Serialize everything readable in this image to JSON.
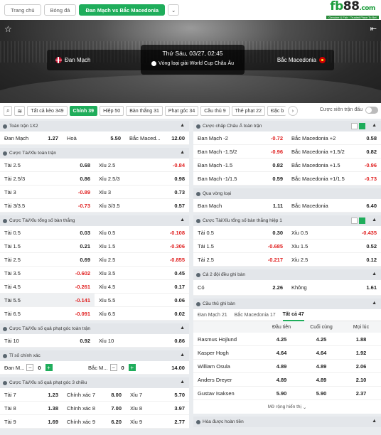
{
  "nav": {
    "home": "Trang chủ",
    "football": "Bóng đá",
    "match": "Đan Mạch vs Bắc Macedonia",
    "dropdown": "⌄"
  },
  "logo": {
    "text_green": "fb",
    "text_dark": "88",
    "suffix": ".com",
    "tagline": "Genuine & Fair · Trusted Place To Bet"
  },
  "match": {
    "home": "Đan Mạch",
    "away": "Bắc Macedonia",
    "date": "Thứ Sáu, 03/27, 02:45",
    "competition": "Vòng loại giải World Cup Châu Âu"
  },
  "tabs": [
    "Tất cả kèo 349",
    "Chính 39",
    "Hiệp 50",
    "Bàn thắng 31",
    "Phạt góc 34",
    "Cầu thủ 9",
    "Thẻ phạt 22",
    "Đặc b"
  ],
  "toggle_label": "Cược xiên trận đấu",
  "left": {
    "p1": {
      "title": "Toàn trận 1X2",
      "rows": [
        [
          "Đan Mạch",
          "1.27",
          "Hoà",
          "5.50",
          "Bắc Maced...",
          "12.00"
        ]
      ]
    },
    "p2": {
      "title": "Cược Tài/Xỉu toàn trận",
      "rows": [
        [
          "Tài 2.5",
          "0.68",
          "Xỉu 2.5",
          "-0.84"
        ],
        [
          "Tài 2.5/3",
          "0.86",
          "Xỉu 2.5/3",
          "0.98"
        ],
        [
          "Tài 3",
          "-0.89",
          "Xỉu 3",
          "0.73"
        ],
        [
          "Tài 3/3.5",
          "-0.73",
          "Xỉu 3/3.5",
          "0.57"
        ]
      ]
    },
    "p3": {
      "title": "Cược Tài/Xỉu tổng số bàn thắng",
      "rows": [
        [
          "Tài 0.5",
          "0.03",
          "Xỉu 0.5",
          "-0.108"
        ],
        [
          "Tài 1.5",
          "0.21",
          "Xỉu 1.5",
          "-0.306"
        ],
        [
          "Tài 2.5",
          "0.69",
          "Xỉu 2.5",
          "-0.855"
        ],
        [
          "Tài 3.5",
          "-0.602",
          "Xỉu 3.5",
          "0.45"
        ],
        [
          "Tài 4.5",
          "-0.261",
          "Xỉu 4.5",
          "0.17"
        ],
        [
          "Tài 5.5",
          "-0.141",
          "Xỉu 5.5",
          "0.06"
        ],
        [
          "Tài 6.5",
          "-0.091",
          "Xỉu 6.5",
          "0.02"
        ]
      ]
    },
    "p4": {
      "title": "Cược Tài/Xỉu số quả phạt góc toàn trận",
      "rows": [
        [
          "Tài 10",
          "0.92",
          "Xỉu 10",
          "0.86"
        ]
      ]
    },
    "p5": {
      "title": "Tỉ số chính xác",
      "home": "Đan M...",
      "home_val": "0",
      "away": "Bắc M...",
      "away_val": "0",
      "odds": "14.00",
      "minus": "−",
      "plus": "+"
    },
    "p6": {
      "title": "Cược Tài/Xỉu số quả phạt góc 3 chiều",
      "rows": [
        [
          "Tài 7",
          "1.23",
          "Chính xác 7",
          "8.00",
          "Xỉu 7",
          "5.70"
        ],
        [
          "Tài 8",
          "1.38",
          "Chính xác 8",
          "7.00",
          "Xỉu 8",
          "3.97"
        ],
        [
          "Tài 9",
          "1.69",
          "Chính xác 9",
          "6.20",
          "Xỉu 9",
          "2.77"
        ]
      ]
    }
  },
  "right": {
    "p1": {
      "title": "Cược chấp Châu Á toàn trận",
      "rows": [
        [
          "Đan Mạch -2",
          "-0.72",
          "Bắc Macedonia +2",
          "0.58"
        ],
        [
          "Đan Mạch -1.5/2",
          "-0.96",
          "Bắc Macedonia +1.5/2",
          "0.82"
        ],
        [
          "Đan Mạch -1.5",
          "0.82",
          "Bắc Macedonia +1.5",
          "-0.96"
        ],
        [
          "Đan Mạch -1/1.5",
          "0.59",
          "Bắc Macedonia +1/1.5",
          "-0.73"
        ]
      ]
    },
    "p2": {
      "title": "Qua vòng loại",
      "rows": [
        [
          "Đan Mạch",
          "1.11",
          "Bắc Macedonia",
          "6.40"
        ]
      ]
    },
    "p3": {
      "title": "Cược Tài/Xỉu tổng số bàn thắng hiệp 1",
      "rows": [
        [
          "Tài 0.5",
          "0.30",
          "Xỉu 0.5",
          "-0.435"
        ],
        [
          "Tài 1.5",
          "-0.685",
          "Xỉu 1.5",
          "0.52"
        ],
        [
          "Tài 2.5",
          "-0.217",
          "Xỉu 2.5",
          "0.12"
        ]
      ]
    },
    "p4": {
      "title": "Cả 2 đội đều ghi bàn",
      "rows": [
        [
          "Có",
          "2.26",
          "Không",
          "1.61"
        ]
      ]
    },
    "p5": {
      "title": "Cầu thủ ghi bàn",
      "subtabs": [
        "Đan Mạch 21",
        "Bắc Macedonia 17",
        "Tất cả 47"
      ],
      "headers": [
        "Đầu tiên",
        "Cuối cùng",
        "Mọi lúc"
      ],
      "rows": [
        [
          "Rasmus Hojlund",
          "4.25",
          "4.25",
          "1.88"
        ],
        [
          "Kasper Hogh",
          "4.64",
          "4.64",
          "1.92"
        ],
        [
          "William Osula",
          "4.89",
          "4.89",
          "2.06"
        ],
        [
          "Anders Dreyer",
          "4.89",
          "4.89",
          "2.10"
        ],
        [
          "Gustav Isaksen",
          "5.90",
          "5.90",
          "2.37"
        ]
      ],
      "more": "Mở rộng hiển thị"
    },
    "p6": {
      "title": "Hòa được hoàn tiền"
    }
  }
}
